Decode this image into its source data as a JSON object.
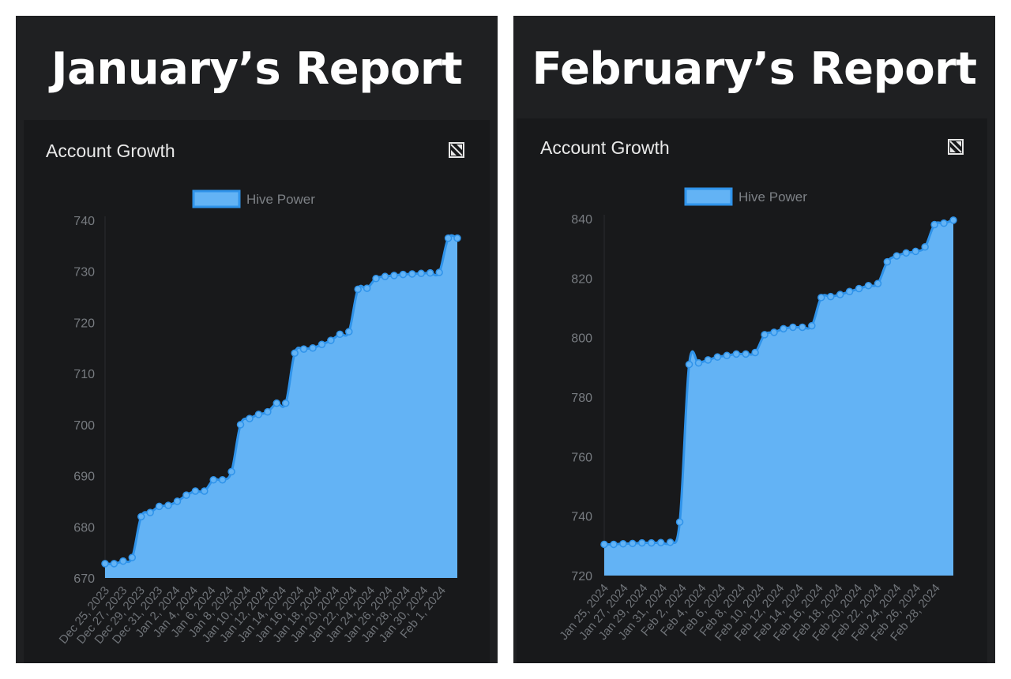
{
  "panels": [
    {
      "title": "January’s Report",
      "card_title": "Account Growth",
      "icon": "expand-icon",
      "chart_data": {
        "type": "area",
        "legend": [
          "Hive Power"
        ],
        "legend_position": "top-center",
        "series": [
          {
            "name": "Hive Power",
            "color": "#63b3f5",
            "stroke": "#2f93ea",
            "values": [
              672.8,
              672.8,
              673.3,
              674.0,
              682.0,
              682.8,
              684.0,
              684.2,
              685.0,
              686.2,
              687.0,
              687.0,
              689.2,
              689.2,
              690.8,
              700.0,
              701.2,
              702.0,
              702.5,
              704.2,
              704.2,
              714.0,
              714.8,
              715.0,
              715.7,
              716.5,
              717.7,
              718.2,
              726.5,
              726.7,
              728.6,
              729.0,
              729.2,
              729.4,
              729.5,
              729.6,
              729.7,
              729.8,
              736.5,
              736.5
            ]
          }
        ],
        "x_tick_labels": [
          "Dec 25, 2023",
          "Dec 27, 2023",
          "Dec 29, 2023",
          "Dec 31, 2023",
          "Jan 2, 2024",
          "Jan 4, 2024",
          "Jan 6, 2024",
          "Jan 8, 2024",
          "Jan 10, 2024",
          "Jan 12, 2024",
          "Jan 14, 2024",
          "Jan 16, 2024",
          "Jan 18, 2024",
          "Jan 20, 2024",
          "Jan 22, 2024",
          "Jan 24, 2024",
          "Jan 26, 2024",
          "Jan 28, 2024",
          "Jan 30, 2024",
          "Feb 1, 2024"
        ],
        "y_ticks": [
          670,
          680,
          690,
          700,
          710,
          720,
          730,
          740
        ],
        "ylim": [
          670,
          740
        ],
        "grid": false
      }
    },
    {
      "title": "February’s Report",
      "card_title": "Account Growth",
      "icon": "expand-icon",
      "chart_data": {
        "type": "area",
        "legend": [
          "Hive Power"
        ],
        "legend_position": "top-center",
        "series": [
          {
            "name": "Hive Power",
            "color": "#63b3f5",
            "stroke": "#2f93ea",
            "values": [
              730.5,
              730.5,
              730.7,
              730.8,
              731.0,
              731.0,
              731.1,
              731.2,
              738.0,
              791.0,
              791.5,
              792.5,
              793.5,
              794.0,
              794.5,
              794.5,
              795.0,
              801.0,
              801.8,
              803.0,
              803.5,
              803.5,
              804.0,
              813.5,
              813.8,
              814.5,
              815.5,
              816.5,
              817.5,
              818.2,
              825.5,
              827.5,
              828.5,
              829.0,
              830.5,
              838.0,
              838.5,
              839.5
            ]
          }
        ],
        "x_tick_labels": [
          "Jan 25, 2024",
          "Jan 27, 2024",
          "Jan 29, 2024",
          "Jan 31, 2024",
          "Feb 2, 2024",
          "Feb 4, 2024",
          "Feb 6, 2024",
          "Feb 8, 2024",
          "Feb 10, 2024",
          "Feb 12, 2024",
          "Feb 14, 2024",
          "Feb 16, 2024",
          "Feb 18, 2024",
          "Feb 20, 2024",
          "Feb 22, 2024",
          "Feb 24, 2024",
          "Feb 26, 2024",
          "Feb 28, 2024"
        ],
        "y_ticks": [
          720,
          740,
          760,
          780,
          800,
          820,
          840
        ],
        "ylim": [
          720,
          840
        ],
        "grid": false
      }
    }
  ]
}
